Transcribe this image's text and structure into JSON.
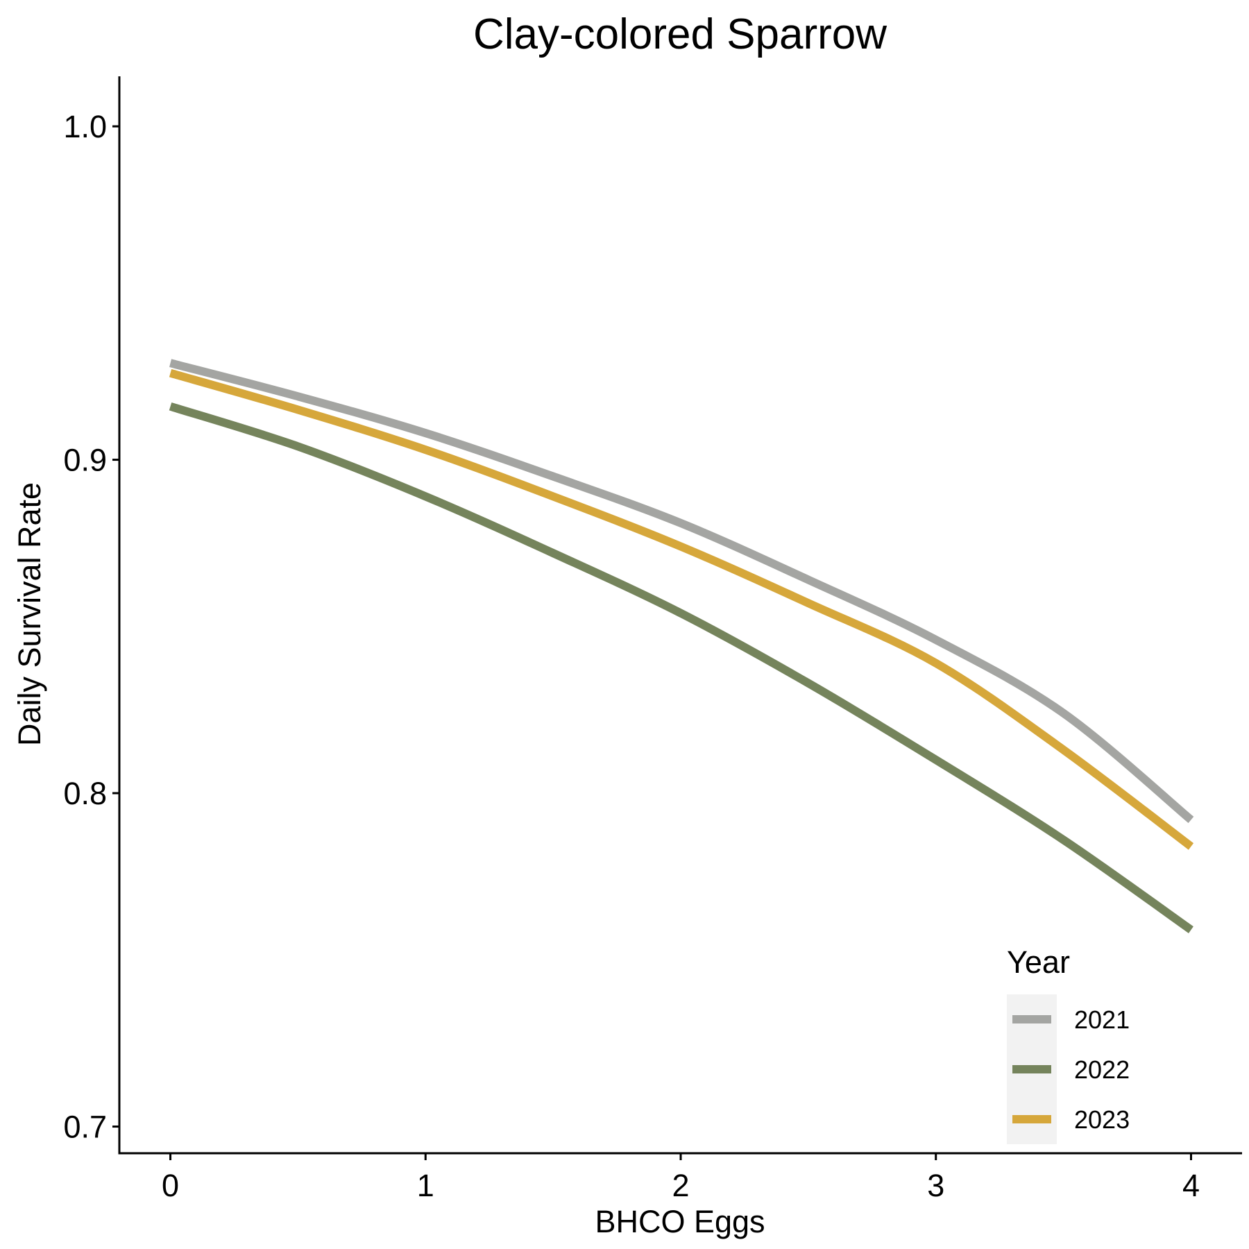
{
  "chart_data": {
    "type": "line",
    "title": "Clay-colored Sparrow",
    "xlabel": "BHCO Eggs",
    "ylabel": "Daily Survival Rate",
    "xlim": [
      -0.2,
      4.2
    ],
    "ylim": [
      0.692,
      1.015
    ],
    "x_ticks": [
      0,
      1,
      2,
      3,
      4
    ],
    "x_tick_labels": [
      "0",
      "1",
      "2",
      "3",
      "4"
    ],
    "y_ticks": [
      0.7,
      0.8,
      0.9,
      1.0
    ],
    "y_tick_labels": [
      "0.7",
      "0.8",
      "0.9",
      "1.0"
    ],
    "grid": false,
    "legend": {
      "title": "Year",
      "position": "bottom-right"
    },
    "x": [
      0,
      0.5,
      1,
      1.5,
      2,
      2.5,
      3,
      3.5,
      4
    ],
    "series": [
      {
        "name": "2021",
        "color": "#a4a5a2",
        "values": [
          0.929,
          0.919,
          0.908,
          0.895,
          0.881,
          0.864,
          0.846,
          0.824,
          0.792
        ]
      },
      {
        "name": "2022",
        "color": "#75845c",
        "values": [
          0.916,
          0.904,
          0.889,
          0.872,
          0.854,
          0.833,
          0.81,
          0.786,
          0.759
        ]
      },
      {
        "name": "2023",
        "color": "#d6a73b",
        "values": [
          0.926,
          0.915,
          0.903,
          0.889,
          0.874,
          0.857,
          0.839,
          0.813,
          0.784
        ]
      }
    ]
  }
}
